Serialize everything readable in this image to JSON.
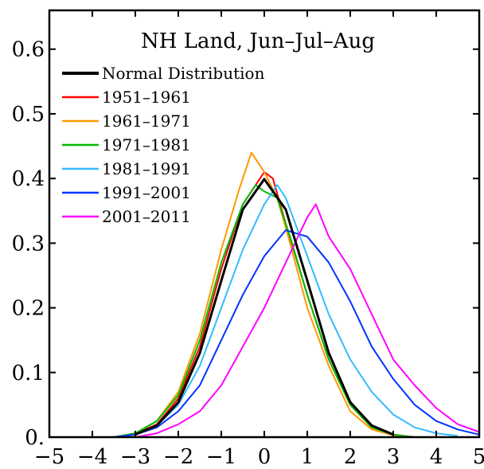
{
  "chart_data": {
    "type": "line",
    "title": "NH Land, Jun–Jul–Aug",
    "xlabel": "",
    "ylabel": "",
    "xlim": [
      -5,
      5
    ],
    "ylim": [
      0,
      0.66
    ],
    "x_ticks": [
      -5,
      -4,
      -3,
      -2,
      -1,
      0,
      1,
      2,
      3,
      4,
      5
    ],
    "x_tick_labels": [
      "−5",
      "−4",
      "−3",
      "−2",
      "−1",
      "0",
      "1",
      "2",
      "3",
      "4",
      "5"
    ],
    "y_ticks": [
      0,
      0.1,
      0.2,
      0.3,
      0.4,
      0.5,
      0.6
    ],
    "y_tick_labels": [
      "0.",
      "0.1",
      "0.2",
      "0.3",
      "0.4",
      "0.5",
      "0.6"
    ],
    "grid": false,
    "legend_position": "top-left",
    "series": [
      {
        "name": "Normal Distribution",
        "color": "#000000",
        "x": [
          -3.0,
          -2.5,
          -2.0,
          -1.5,
          -1.0,
          -0.5,
          0.0,
          0.5,
          1.0,
          1.5,
          2.0,
          2.5,
          3.0
        ],
        "y": [
          0.004,
          0.018,
          0.054,
          0.13,
          0.242,
          0.352,
          0.399,
          0.352,
          0.242,
          0.13,
          0.054,
          0.018,
          0.004
        ]
      },
      {
        "name": "1951–1961",
        "color": "#ff0000",
        "x": [
          -3.5,
          -3.0,
          -2.5,
          -2.0,
          -1.5,
          -1.0,
          -0.5,
          -0.3,
          0.0,
          0.2,
          0.5,
          1.0,
          1.5,
          2.0,
          2.5,
          3.0,
          3.5
        ],
        "y": [
          0.0,
          0.005,
          0.02,
          0.06,
          0.14,
          0.26,
          0.36,
          0.38,
          0.41,
          0.4,
          0.33,
          0.22,
          0.12,
          0.05,
          0.015,
          0.004,
          0.0
        ]
      },
      {
        "name": "1961–1971",
        "color": "#ff9900",
        "x": [
          -3.5,
          -3.0,
          -2.5,
          -2.0,
          -1.5,
          -1.0,
          -0.6,
          -0.3,
          0.0,
          0.3,
          0.6,
          1.0,
          1.5,
          2.0,
          2.5,
          3.0,
          3.5
        ],
        "y": [
          0.0,
          0.006,
          0.025,
          0.07,
          0.16,
          0.29,
          0.38,
          0.44,
          0.41,
          0.37,
          0.3,
          0.2,
          0.11,
          0.04,
          0.012,
          0.003,
          0.0
        ]
      },
      {
        "name": "1971–1981",
        "color": "#00bb00",
        "x": [
          -3.5,
          -3.0,
          -2.5,
          -2.0,
          -1.5,
          -1.0,
          -0.5,
          -0.2,
          0.0,
          0.3,
          0.6,
          1.0,
          1.5,
          2.0,
          2.5,
          3.0,
          3.5
        ],
        "y": [
          0.0,
          0.006,
          0.025,
          0.065,
          0.15,
          0.27,
          0.36,
          0.39,
          0.38,
          0.37,
          0.31,
          0.22,
          0.12,
          0.05,
          0.015,
          0.004,
          0.0
        ]
      },
      {
        "name": "1981–1991",
        "color": "#33bbff",
        "x": [
          -3.5,
          -3.0,
          -2.5,
          -2.0,
          -1.5,
          -1.0,
          -0.5,
          0.0,
          0.3,
          0.5,
          1.0,
          1.5,
          2.0,
          2.5,
          3.0,
          3.5,
          4.0,
          4.5
        ],
        "y": [
          0.0,
          0.004,
          0.018,
          0.05,
          0.11,
          0.2,
          0.29,
          0.36,
          0.39,
          0.37,
          0.28,
          0.19,
          0.12,
          0.07,
          0.035,
          0.015,
          0.006,
          0.002
        ]
      },
      {
        "name": "1991–2001",
        "color": "#0033ff",
        "x": [
          -3.5,
          -3.0,
          -2.5,
          -2.0,
          -1.5,
          -1.0,
          -0.5,
          0.0,
          0.5,
          1.0,
          1.5,
          2.0,
          2.5,
          3.0,
          3.5,
          4.0,
          4.5,
          5.0
        ],
        "y": [
          0.0,
          0.004,
          0.015,
          0.04,
          0.08,
          0.15,
          0.22,
          0.28,
          0.32,
          0.31,
          0.27,
          0.21,
          0.14,
          0.09,
          0.05,
          0.025,
          0.012,
          0.004
        ]
      },
      {
        "name": "2001–2011",
        "color": "#ff00ff",
        "x": [
          -3.0,
          -2.5,
          -2.0,
          -1.5,
          -1.0,
          -0.5,
          0.0,
          0.5,
          1.0,
          1.2,
          1.5,
          2.0,
          2.5,
          3.0,
          3.5,
          4.0,
          4.5,
          5.0
        ],
        "y": [
          0.0,
          0.006,
          0.02,
          0.04,
          0.08,
          0.14,
          0.2,
          0.27,
          0.34,
          0.36,
          0.31,
          0.26,
          0.19,
          0.12,
          0.08,
          0.045,
          0.02,
          0.008
        ]
      }
    ]
  }
}
